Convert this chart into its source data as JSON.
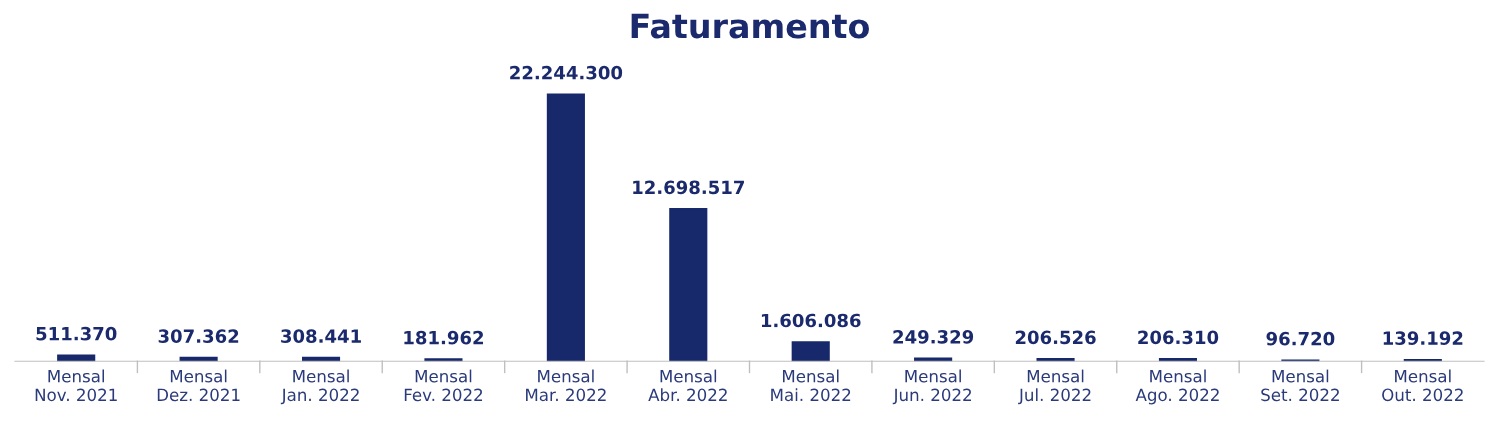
{
  "chart_data": {
    "type": "bar",
    "title": "Faturamento",
    "categories": [
      "Mensal\nNov. 2021",
      "Mensal\nDez. 2021",
      "Mensal\nJan. 2022",
      "Mensal\nFev. 2022",
      "Mensal\nMar. 2022",
      "Mensal\nAbr. 2022",
      "Mensal\nMai. 2022",
      "Mensal\nJun. 2022",
      "Mensal\nJul. 2022",
      "Mensal\nAgo. 2022",
      "Mensal\nSet. 2022",
      "Mensal\nOut. 2022"
    ],
    "values": [
      511370,
      307362,
      308441,
      181962,
      22244300,
      12698517,
      1606086,
      249329,
      206526,
      206310,
      96720,
      139192
    ],
    "value_labels": [
      "511.370",
      "307.362",
      "308.441",
      "181.962",
      "22.244.300",
      "12.698.517",
      "1.606.086",
      "249.329",
      "206.526",
      "206.310",
      "96.720",
      "139.192"
    ],
    "color": "#17286b",
    "grid": false,
    "legend": false
  }
}
